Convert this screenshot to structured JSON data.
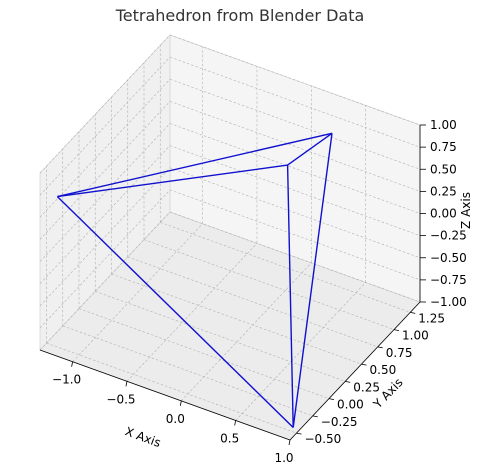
{
  "chart_data": {
    "type": "line",
    "title": "Tetrahedron from Blender Data",
    "xlabel": "X Axis",
    "ylabel": "Y Axis",
    "zlabel": "Z Axis",
    "xlim": [
      -1.3,
      1.0
    ],
    "ylim": [
      -0.6,
      1.4
    ],
    "zlim": [
      -1.0,
      1.0
    ],
    "x_ticks": [
      -1.0,
      -0.5,
      0.0,
      0.5,
      1.0
    ],
    "x_tick_labels": [
      "−1.0",
      "−0.5",
      "0.0",
      "0.5",
      "1.0"
    ],
    "y_ticks": [
      -0.5,
      -0.25,
      0.0,
      0.25,
      0.5,
      0.75,
      1.0,
      1.25
    ],
    "y_tick_labels": [
      "−0.50",
      "−0.25",
      "0.00",
      "0.25",
      "0.50",
      "0.75",
      "1.00",
      "1.25"
    ],
    "z_ticks": [
      -1.0,
      -0.75,
      -0.5,
      -0.25,
      0.0,
      0.25,
      0.5,
      0.75,
      1.0
    ],
    "z_tick_labels": [
      "−1.00",
      "−0.75",
      "−0.50",
      "−0.25",
      "0.00",
      "0.25",
      "0.50",
      "0.75",
      "1.00"
    ],
    "vertices": [
      {
        "x": -1.2,
        "y": -0.5,
        "z": 0.7
      },
      {
        "x": 0.97,
        "y": -0.5,
        "z": -0.95
      },
      {
        "x": 0.35,
        "y": 0.45,
        "z": 1.0
      },
      {
        "x": 0.22,
        "y": 1.35,
        "z": 0.6
      }
    ],
    "edges": [
      [
        0,
        1
      ],
      [
        0,
        2
      ],
      [
        0,
        3
      ],
      [
        1,
        2
      ],
      [
        1,
        3
      ],
      [
        2,
        3
      ]
    ],
    "line_color": "#1010d0",
    "pane_color": "#f2f2f2",
    "grid": true
  }
}
